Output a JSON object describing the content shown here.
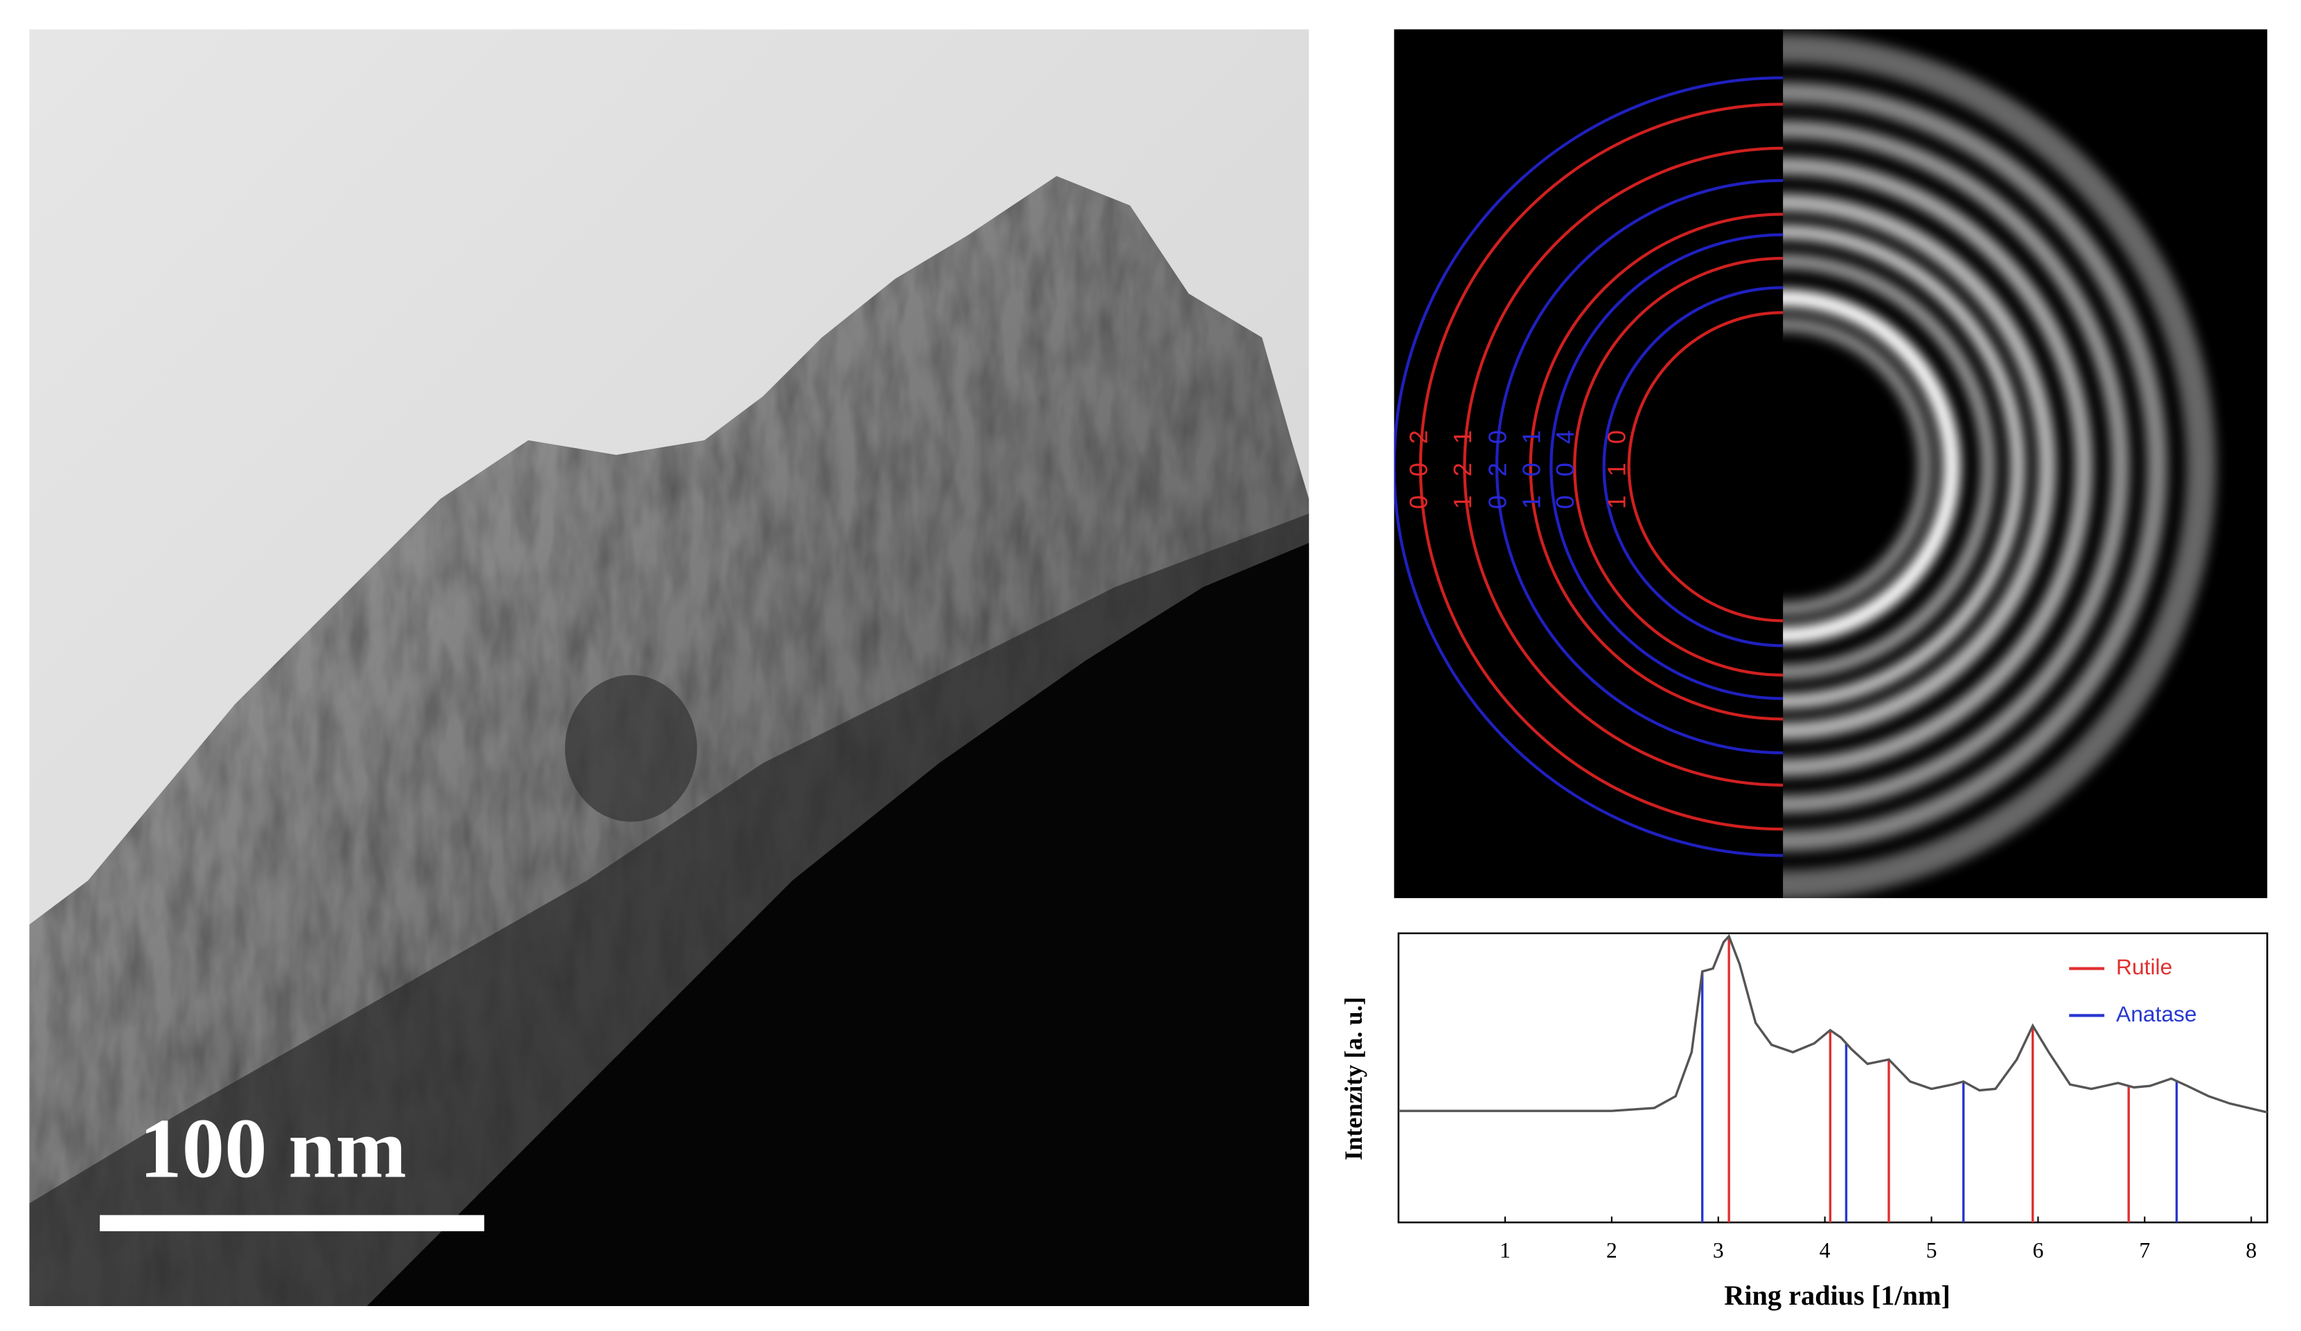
{
  "tem_image": {
    "scale_bar": "100 nm"
  },
  "diffraction": {
    "ring_labels": [
      {
        "text": "0 0 2",
        "color": "#e02828"
      },
      {
        "text": "1 2 1",
        "color": "#e02828"
      },
      {
        "text": "0 2 0",
        "color": "#2828d8"
      },
      {
        "text": "1 0 1",
        "color": "#2828d8"
      },
      {
        "text": "0 0 4",
        "color": "#2828d8"
      },
      {
        "text": "1 1 0",
        "color": "#e02828"
      }
    ]
  },
  "chart_data": {
    "type": "line",
    "xlabel": "Ring radius [1/nm]",
    "ylabel": "Intenzity [a. u.]",
    "x": [
      0,
      1,
      2,
      2.4,
      2.6,
      2.75,
      2.85,
      2.95,
      3.05,
      3.1,
      3.2,
      3.35,
      3.5,
      3.7,
      3.9,
      4.05,
      4.15,
      4.25,
      4.4,
      4.6,
      4.8,
      5.0,
      5.2,
      5.3,
      5.45,
      5.6,
      5.8,
      5.95,
      6.1,
      6.3,
      6.5,
      6.75,
      6.9,
      7.05,
      7.25,
      7.4,
      7.6,
      7.8,
      8.15
    ],
    "series": [
      {
        "color": "#555555",
        "values": [
          0,
          0,
          0,
          0.02,
          0.1,
          0.4,
          0.95,
          0.97,
          1.15,
          1.19,
          1.0,
          0.6,
          0.45,
          0.4,
          0.46,
          0.55,
          0.5,
          0.42,
          0.32,
          0.35,
          0.2,
          0.15,
          0.18,
          0.2,
          0.14,
          0.15,
          0.35,
          0.58,
          0.4,
          0.18,
          0.15,
          0.19,
          0.16,
          0.17,
          0.22,
          0.17,
          0.1,
          0.05,
          -0.01
        ]
      }
    ],
    "reference_lines": [
      {
        "name": "Rutile",
        "color": "#e03030",
        "x": [
          3.1,
          4.05,
          4.6,
          5.95,
          6.85
        ]
      },
      {
        "name": "Anatase",
        "color": "#2838d0",
        "x": [
          2.85,
          4.2,
          5.3,
          7.3
        ]
      }
    ],
    "xlim": [
      0,
      8.15
    ],
    "xticks": [
      1,
      2,
      3,
      4,
      5,
      6,
      7,
      8
    ],
    "ylim": [
      -0.76,
      1.21
    ],
    "legend": "upper right"
  }
}
